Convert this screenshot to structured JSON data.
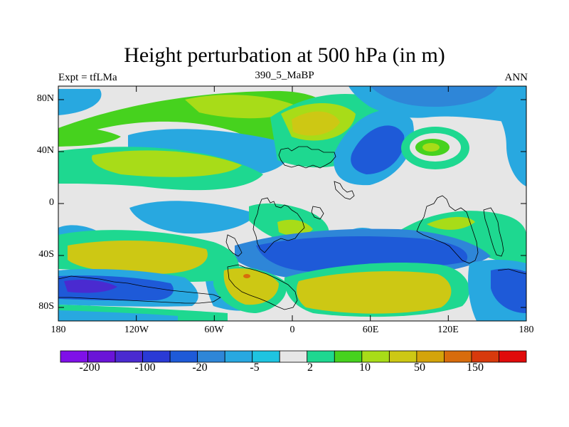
{
  "title": "Height perturbation at 500 hPa (in m)",
  "left_label": "Expt = tfLMa",
  "center_label": "390_5_MaBP",
  "right_label": "ANN",
  "axes": {
    "y_ticks": [
      "80N",
      "40N",
      "0",
      "40S",
      "80S"
    ],
    "x_ticks": [
      "180",
      "120W",
      "60W",
      "0",
      "60E",
      "120E",
      "180"
    ]
  },
  "colorbar": {
    "colors": [
      "#7f10e8",
      "#6a14d8",
      "#4a2ad0",
      "#2a3ad6",
      "#1e5ad8",
      "#2e86d8",
      "#28a8e0",
      "#1ec4e0",
      "#e6e6e6",
      "#1ed890",
      "#46d21e",
      "#a8dc18",
      "#cdc814",
      "#d4a40a",
      "#d86c0c",
      "#d83a0c",
      "#e00a0a"
    ],
    "labels": [
      "-200",
      "-100",
      "-20",
      "-5",
      "2",
      "10",
      "50",
      "150"
    ]
  },
  "colors": {
    "background_field": "#e6e6e6",
    "strong_negative": "#1e5ad8",
    "negative": "#2e86d8",
    "weak_negative": "#28a8e0",
    "weak_positive": "#1ed890",
    "positive": "#46d21e",
    "moderate_positive": "#a8dc18",
    "strong_positive": "#cdc814",
    "hot_spot": "#d86c0c"
  }
}
